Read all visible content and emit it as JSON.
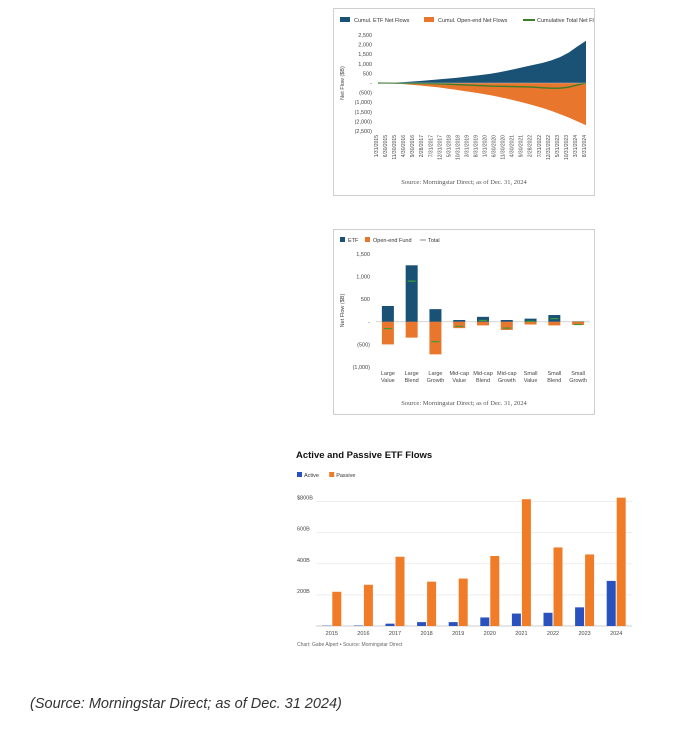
{
  "footer_note": "(Source: Morningstar Direct; as of Dec. 31 2024)",
  "chart_data": [
    {
      "type": "area",
      "title": "",
      "ylabel": "Net Flow ($B)",
      "ylim": [
        -2500,
        2500
      ],
      "y_ticks": [
        2500,
        2000,
        1500,
        1000,
        500,
        0,
        -500,
        -1000,
        -1500,
        -2000,
        -2500
      ],
      "y_tick_labels": [
        "2,500",
        "2,000",
        "1,500",
        "1,000",
        "500",
        "-",
        "(500)",
        "(1,000)",
        "(1,500)",
        "(2,000)",
        "(2,500)"
      ],
      "x_tick_labels": [
        "1/31/2015",
        "6/30/2015",
        "11/30/2015",
        "4/30/2016",
        "9/30/2016",
        "2/28/2017",
        "7/31/2017",
        "12/31/2017",
        "5/31/2018",
        "10/31/2018",
        "3/31/2019",
        "8/31/2019",
        "1/31/2020",
        "6/30/2020",
        "11/30/2020",
        "4/30/2021",
        "9/30/2021",
        "2/28/2022",
        "7/31/2022",
        "12/31/2022",
        "5/31/2023",
        "10/31/2023",
        "3/31/2024",
        "8/31/2024"
      ],
      "legend_position": "top",
      "series": [
        {
          "name": "Cumul. ETF Net Flows",
          "color": "#1a5276",
          "values": [
            0,
            10,
            25,
            45,
            75,
            110,
            150,
            190,
            230,
            270,
            320,
            370,
            420,
            480,
            560,
            650,
            750,
            850,
            950,
            1050,
            1180,
            1350,
            1580,
            1900,
            2200
          ]
        },
        {
          "name": "Cumul. Open-end Net Flows",
          "color": "#e8762c",
          "values": [
            0,
            -15,
            -35,
            -60,
            -95,
            -135,
            -180,
            -230,
            -290,
            -350,
            -420,
            -490,
            -560,
            -640,
            -730,
            -830,
            -940,
            -1050,
            -1170,
            -1300,
            -1450,
            -1620,
            -1800,
            -2000,
            -2200
          ]
        },
        {
          "name": "Cumulative Total Net Flows",
          "color": "#3a7d2c",
          "values": [
            0,
            -5,
            -10,
            -15,
            -20,
            -25,
            -30,
            -40,
            -60,
            -80,
            -100,
            -120,
            -140,
            -160,
            -170,
            -180,
            -190,
            -200,
            -220,
            -250,
            -270,
            -270,
            -220,
            -100,
            0
          ]
        }
      ],
      "source": "Source: Morningstar Direct; as of Dec. 31, 2024"
    },
    {
      "type": "bar",
      "title": "",
      "ylabel": "Net Flow ($B)",
      "ylim": [
        -1000,
        1500
      ],
      "y_ticks": [
        1500,
        1000,
        500,
        0,
        -500,
        -1000
      ],
      "y_tick_labels": [
        "1,500",
        "1,000",
        "500",
        "-",
        "(500)",
        "(1,000)"
      ],
      "categories": [
        [
          "Large",
          "Value"
        ],
        [
          "Large",
          "Blend"
        ],
        [
          "Large",
          "Growth"
        ],
        [
          "Mid-cap",
          "Value"
        ],
        [
          "Mid-cap",
          "Blend"
        ],
        [
          "Mid-cap",
          "Growth"
        ],
        [
          "Small",
          "Value"
        ],
        [
          "Small",
          "Blend"
        ],
        [
          "Small",
          "Growth"
        ]
      ],
      "legend_position": "top",
      "series": [
        {
          "name": "ETF",
          "color": "#1a5276",
          "values": [
            350,
            1250,
            280,
            40,
            110,
            40,
            70,
            150,
            10
          ]
        },
        {
          "name": "Open-end Fund",
          "color": "#e8762c",
          "values": [
            -500,
            -350,
            -720,
            -140,
            -80,
            -180,
            -60,
            -80,
            -70
          ]
        },
        {
          "name": "Total",
          "color": "#3a9d3a",
          "values": [
            -150,
            900,
            -440,
            -100,
            30,
            -140,
            10,
            70,
            -60
          ]
        }
      ],
      "source": "Source: Morningstar Direct; as of Dec. 31, 2024"
    },
    {
      "type": "bar",
      "title": "Active and Passive ETF Flows",
      "categories": [
        "2015",
        "2016",
        "2017",
        "2018",
        "2019",
        "2020",
        "2021",
        "2022",
        "2023",
        "2024"
      ],
      "ylim": [
        0,
        900
      ],
      "y_ticks": [
        200,
        400,
        600,
        800
      ],
      "y_tick_labels": [
        "200B",
        "400B",
        "600B",
        "$800B"
      ],
      "legend_position": "top-left",
      "series": [
        {
          "name": "Active",
          "color": "#2a52be",
          "values": [
            2,
            3,
            15,
            25,
            25,
            55,
            80,
            85,
            120,
            290
          ]
        },
        {
          "name": "Passive",
          "color": "#f07c28",
          "values": [
            220,
            265,
            445,
            285,
            305,
            450,
            815,
            505,
            460,
            825
          ]
        }
      ],
      "credit": "Chart: Gabe Alpert • Source: Morningstar Direct"
    }
  ]
}
